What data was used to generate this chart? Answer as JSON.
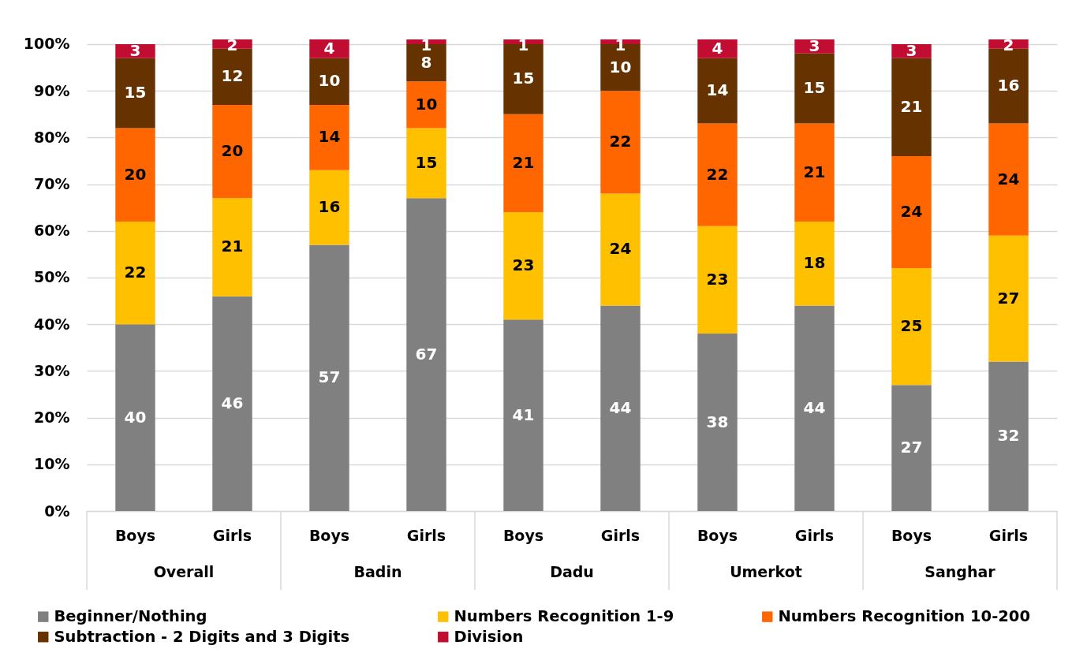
{
  "chart_data": {
    "type": "bar",
    "stacked": true,
    "categories": [
      "Boys",
      "Girls",
      "Boys",
      "Girls",
      "Boys",
      "Girls",
      "Boys",
      "Girls",
      "Boys",
      "Girls"
    ],
    "annotations": [
      "Overall",
      "Badin",
      "Dadu",
      "Umerkot",
      "Sanghar"
    ],
    "series": [
      {
        "name": "Beginner/Nothing",
        "color": "#808080",
        "values": [
          40,
          46,
          57,
          67,
          41,
          44,
          38,
          44,
          27,
          32
        ]
      },
      {
        "name": "Numbers Recognition 1-9",
        "color": "#ffc000",
        "values": [
          22,
          21,
          16,
          15,
          23,
          24,
          23,
          18,
          25,
          27
        ]
      },
      {
        "name": "Numbers Recognition 10-200",
        "color": "#ff6600",
        "values": [
          20,
          20,
          14,
          10,
          21,
          22,
          22,
          21,
          24,
          24
        ]
      },
      {
        "name": "Subtraction - 2 Digits and 3 Digits",
        "color": "#663300",
        "values": [
          15,
          12,
          10,
          8,
          15,
          10,
          14,
          15,
          21,
          16
        ]
      },
      {
        "name": "Division",
        "color": "#c00d31",
        "values": [
          3,
          2,
          4,
          1,
          1,
          1,
          4,
          3,
          3,
          2
        ]
      }
    ],
    "ylim": [
      0,
      101
    ],
    "yticks": [
      {
        "value": 0,
        "label": "0%"
      },
      {
        "value": 10,
        "label": "10%"
      },
      {
        "value": 20,
        "label": "20%"
      },
      {
        "value": 30,
        "label": "30%"
      },
      {
        "value": 40,
        "label": "40%"
      },
      {
        "value": 50,
        "label": "50%"
      },
      {
        "value": 60,
        "label": "60%"
      },
      {
        "value": 70,
        "label": "70%"
      },
      {
        "value": 80,
        "label": "80%"
      },
      {
        "value": 90,
        "label": "90%"
      },
      {
        "value": 100,
        "label": "100%"
      }
    ],
    "grid": "y",
    "legend": "bottom",
    "data_labels": true
  }
}
